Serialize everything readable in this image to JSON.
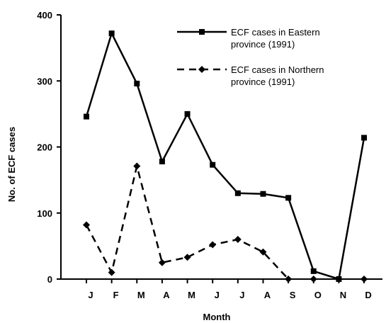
{
  "chart_data": {
    "type": "line",
    "title": "",
    "xlabel": "Month",
    "ylabel": "No. of ECF cases",
    "ylim": [
      0,
      400
    ],
    "yticks": [
      0,
      100,
      200,
      300,
      400
    ],
    "categories": [
      "J",
      "F",
      "M",
      "A",
      "M",
      "J",
      "J",
      "A",
      "S",
      "O",
      "N",
      "D"
    ],
    "grid": false,
    "legend_position": "top-right",
    "series": [
      {
        "name": "ECF cases in Eastern province (1991)",
        "legend_lines": [
          "ECF cases in Eastern",
          "province (1991)"
        ],
        "line_style": "solid",
        "marker": "square",
        "color": "#000000",
        "values": [
          246,
          372,
          296,
          178,
          250,
          173,
          130,
          129,
          123,
          12,
          0,
          214
        ]
      },
      {
        "name": "ECF cases in Northern province (1991)",
        "legend_lines": [
          "ECF cases in Northern",
          "province (1991)"
        ],
        "line_style": "dashed",
        "marker": "diamond",
        "color": "#000000",
        "values": [
          82,
          10,
          171,
          25,
          33,
          52,
          60,
          41,
          0,
          0,
          0,
          0
        ],
        "line_points": 9
      }
    ]
  }
}
